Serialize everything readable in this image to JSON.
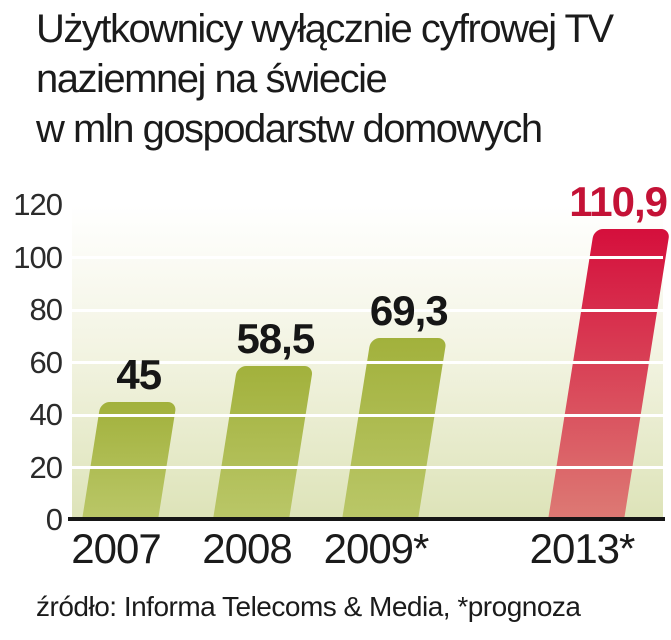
{
  "title": {
    "lines": [
      "Użytkownicy wyłącznie cyfrowej TV",
      "naziemnej na świecie",
      "w mln gospodarstw domowych"
    ]
  },
  "source": "źródło: Informa Telecoms & Media, *prognoza",
  "colors": {
    "bar_green_top": "#a2b13c",
    "bar_green_bottom": "#bac768",
    "bar_red_top": "#d50f3c",
    "bar_red_bottom": "#dd7a74",
    "red_value_label": "#c41236",
    "black_value_label": "#161616",
    "plot_bg_bottom": "#dde3b8",
    "gridline": "#ffffff",
    "axis": "#161616"
  },
  "chart_data": {
    "type": "bar",
    "title": "Użytkownicy wyłącznie cyfrowej TV naziemnej na świecie",
    "subtitle": "w mln gospodarstw domowych",
    "xlabel": "",
    "ylabel": "",
    "categories": [
      "2007",
      "2008",
      "2009*",
      "2013*"
    ],
    "values": [
      45,
      58.5,
      69.3,
      110.9
    ],
    "value_labels": [
      "45",
      "58,5",
      "69,3",
      "110,9"
    ],
    "highlight_index": 3,
    "ylim": [
      0,
      120
    ],
    "yticks": [
      0,
      20,
      40,
      60,
      80,
      100,
      120
    ],
    "gridline_ticks": [
      20,
      40,
      60,
      80,
      100
    ],
    "grid": true,
    "legend": "none",
    "source_note": "źródło: Informa Telecoms & Media, *prognoza"
  }
}
